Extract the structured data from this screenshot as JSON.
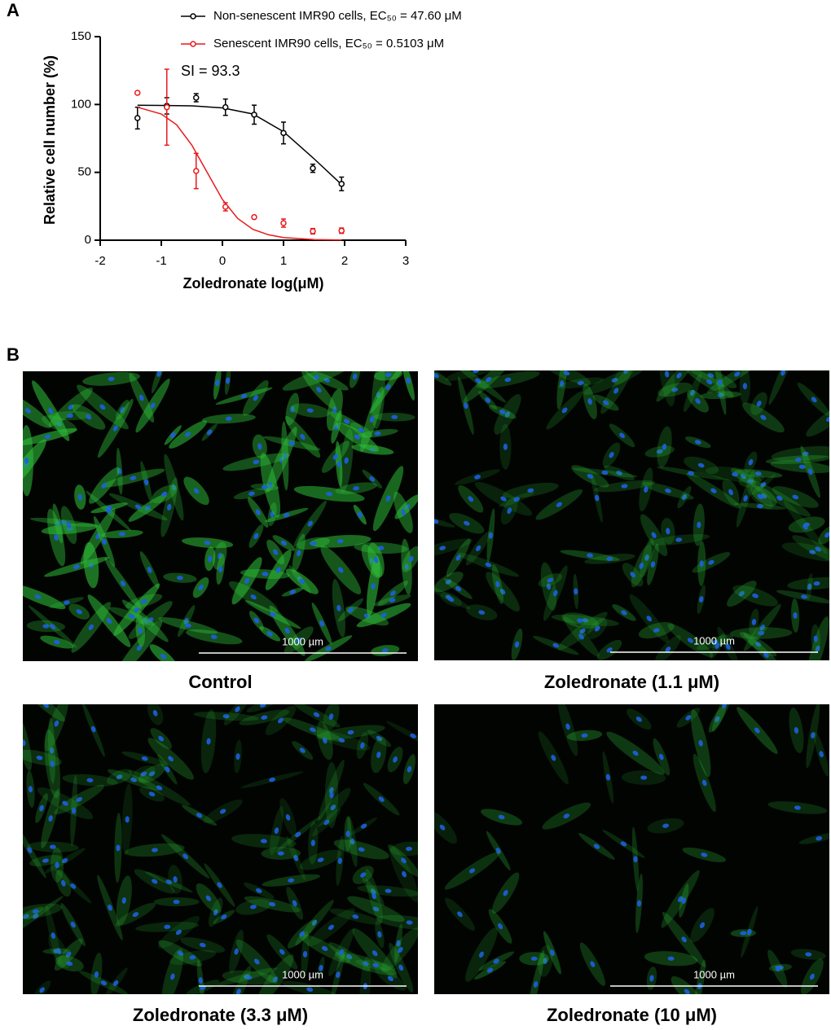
{
  "panel_labels": [
    "A",
    "B"
  ],
  "chart_data": {
    "type": "scatter",
    "xlabel": "Zoledronate log(μM)",
    "ylabel": "Relative cell number (%)",
    "annotation": "SI = 93.3",
    "xlim": [
      -2,
      3
    ],
    "xticks": [
      -2,
      -1,
      0,
      1,
      2,
      3
    ],
    "ylim": [
      0,
      150
    ],
    "yticks": [
      0,
      50,
      100,
      150
    ],
    "series": [
      {
        "name": "Non-senescent IMR90 cells, EC₅₀ = 47.60 μM",
        "color": "#000000",
        "x": [
          -1.39,
          -0.91,
          -0.43,
          0.05,
          0.52,
          1,
          1.48,
          1.95
        ],
        "values": [
          90,
          99,
          105,
          98,
          92.5,
          79,
          53,
          41.5
        ],
        "errors": [
          8,
          6,
          3,
          6,
          7,
          8,
          3,
          5
        ],
        "fit": {
          "x": [
            -1.39,
            -1,
            -0.5,
            0,
            0.5,
            1,
            1.5,
            1.95
          ],
          "values": [
            99.5,
            99.3,
            99,
            97.5,
            93,
            80,
            60,
            41
          ]
        }
      },
      {
        "name": "Senescent IMR90 cells, EC₅₀ = 0.5103 μM",
        "color": "#e8191c",
        "x": [
          -1.39,
          -0.91,
          -0.43,
          0.05,
          0.52,
          1,
          1.48,
          1.95
        ],
        "values": [
          108.6,
          98,
          51,
          24.6,
          17,
          12.6,
          6.6,
          7
        ],
        "errors": [
          1,
          28,
          13,
          3,
          1,
          3,
          2,
          2
        ],
        "fit": {
          "x": [
            -1.39,
            -1,
            -0.75,
            -0.5,
            -0.25,
            0,
            0.25,
            0.5,
            0.75,
            1,
            1.5,
            1.95
          ],
          "values": [
            98,
            93,
            85,
            70,
            50,
            30,
            16,
            8,
            4,
            2,
            0.5,
            0.2
          ]
        }
      }
    ]
  },
  "images": [
    {
      "caption": "Control",
      "scale_bar": "1000 µm"
    },
    {
      "caption": "Zoledronate (1.1 μM)",
      "scale_bar": "1000 µm"
    },
    {
      "caption": "Zoledronate (3.3 μM)",
      "scale_bar": "1000 µm"
    },
    {
      "caption": "Zoledronate (10 μM)",
      "scale_bar": "1000 µm"
    }
  ]
}
